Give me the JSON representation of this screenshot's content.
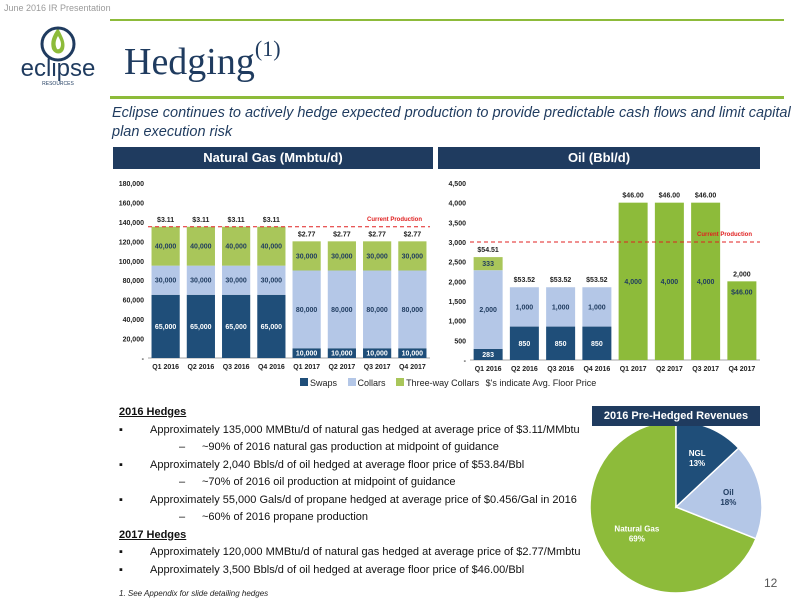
{
  "header": {
    "top_note": "June 2016 IR Presentation",
    "logo_text": "eclipse",
    "logo_subtext": "RESOURCES",
    "title": "Hedging",
    "title_sup": "(1)",
    "subtitle": "Eclipse continues to actively hedge expected production to provide predictable cash flows and limit capital plan execution risk"
  },
  "panels": {
    "gas_title": "Natural Gas (Mmbtu/d)",
    "oil_title": "Oil (Bbl/d)",
    "pie_title": "2016 Pre-Hedged Revenues"
  },
  "legend": {
    "swaps": "Swaps",
    "collars": "Collars",
    "three_way": "Three-way Collars",
    "note": "$'s indicate Avg. Floor Price"
  },
  "colors": {
    "navy": "#1f3b5f",
    "swaps": "#1f4e79",
    "collars": "#b4c7e7",
    "three_way": "#a9c65a",
    "oil_green": "#8dbb3a",
    "ref_line": "#e02020",
    "rule": "#8dbb3a"
  },
  "bullets": {
    "h2016": "2016 Hedges",
    "b1": "Approximately 135,000 MMBtu/d of natural gas hedged at average price of $3.11/MMbtu",
    "s1": "~90% of 2016 natural gas production at midpoint of guidance",
    "b2": "Approximately 2,040 Bbls/d of oil hedged at average floor price of $53.84/Bbl",
    "s2": "~70% of 2016 oil production at midpoint of guidance",
    "b3": "Approximately 55,000 Gals/d of propane hedged at average price of $0.456/Gal in 2016",
    "s3": "~60% of 2016 propane production",
    "h2017": "2017 Hedges",
    "b4": "Approximately 120,000 MMBtu/d of natural gas hedged at average price of $2.77/Mmbtu",
    "b5": "Approximately 3,500 Bbls/d of oil hedged at average floor price of $46.00/Bbl"
  },
  "footnote": "1. See Appendix for slide detailing hedges",
  "page_number": "12",
  "chart_data": [
    {
      "type": "bar",
      "stacked": true,
      "title": "Natural Gas (Mmbtu/d)",
      "categories": [
        "Q1 2016",
        "Q2 2016",
        "Q3 2016",
        "Q4 2016",
        "Q1 2017",
        "Q2 2017",
        "Q3 2017",
        "Q4 2017"
      ],
      "series": [
        {
          "name": "Swaps",
          "values": [
            65000,
            65000,
            65000,
            65000,
            10000,
            10000,
            10000,
            10000
          ],
          "labels": [
            "65,000",
            "65,000",
            "65,000",
            "65,000",
            "10,000",
            "10,000",
            "10,000",
            "10,000"
          ]
        },
        {
          "name": "Collars",
          "values": [
            30000,
            30000,
            30000,
            30000,
            80000,
            80000,
            80000,
            80000
          ],
          "labels": [
            "30,000",
            "30,000",
            "30,000",
            "30,000",
            "80,000",
            "80,000",
            "80,000",
            "80,000"
          ]
        },
        {
          "name": "Three-way Collars",
          "values": [
            40000,
            40000,
            40000,
            40000,
            30000,
            30000,
            30000,
            30000
          ],
          "labels": [
            "40,000",
            "40,000",
            "40,000",
            "40,000",
            "30,000",
            "30,000",
            "30,000",
            "30,000"
          ]
        }
      ],
      "price_labels": [
        "$3.11",
        "$3.11",
        "$3.11",
        "$3.11",
        "$2.77",
        "$2.77",
        "$2.77",
        "$2.77"
      ],
      "current_production": 135000,
      "current_production_label": "Current Production",
      "ylim": [
        0,
        180000
      ],
      "yticks": [
        0,
        20000,
        40000,
        60000,
        80000,
        100000,
        120000,
        140000,
        160000,
        180000
      ],
      "ytick_labels": [
        "-",
        "20,000",
        "40,000",
        "60,000",
        "80,000",
        "100,000",
        "120,000",
        "140,000",
        "160,000",
        "180,000"
      ]
    },
    {
      "type": "bar",
      "stacked": true,
      "title": "Oil (Bbl/d)",
      "categories": [
        "Q1 2016",
        "Q2 2016",
        "Q3 2016",
        "Q4 2016",
        "Q1 2017",
        "Q2 2017",
        "Q3 2017",
        "Q4 2017"
      ],
      "series": [
        {
          "name": "Swaps",
          "values": [
            283,
            850,
            850,
            850,
            0,
            0,
            0,
            0
          ],
          "labels": [
            "283",
            "850",
            "850",
            "850",
            "",
            "",
            "",
            ""
          ]
        },
        {
          "name": "Collars",
          "values": [
            2000,
            1000,
            1000,
            1000,
            0,
            0,
            0,
            0
          ],
          "labels": [
            "2,000",
            "1,000",
            "1,000",
            "1,000",
            "",
            "",
            "",
            ""
          ]
        },
        {
          "name": "Three-way Collars",
          "values": [
            333,
            0,
            0,
            0,
            4000,
            4000,
            4000,
            2000
          ],
          "labels": [
            "333",
            "",
            "",
            "",
            "4,000",
            "4,000",
            "4,000",
            ""
          ]
        }
      ],
      "price_labels": [
        "$54.51",
        "$53.52",
        "$53.52",
        "$53.52",
        "$46.00",
        "$46.00",
        "$46.00",
        "$46.00"
      ],
      "top_total_labels": [
        "",
        "",
        "",
        "",
        "",
        "",
        "",
        "2,000"
      ],
      "current_production": 3000,
      "current_production_label": "Current Production",
      "ylim": [
        0,
        4500
      ],
      "yticks": [
        0,
        500,
        1000,
        1500,
        2000,
        2500,
        3000,
        3500,
        4000,
        4500
      ],
      "ytick_labels": [
        "-",
        "500",
        "1,000",
        "1,500",
        "2,000",
        "2,500",
        "3,000",
        "3,500",
        "4,000",
        "4,500"
      ]
    },
    {
      "type": "pie",
      "title": "2016 Pre-Hedged Revenues",
      "categories": [
        "Natural Gas",
        "NGL",
        "Oil"
      ],
      "values": [
        69,
        13,
        18
      ],
      "labels": [
        "69%",
        "13%",
        "18%"
      ],
      "colors": [
        "#8dbb3a",
        "#1f4e79",
        "#b4c7e7"
      ]
    }
  ]
}
